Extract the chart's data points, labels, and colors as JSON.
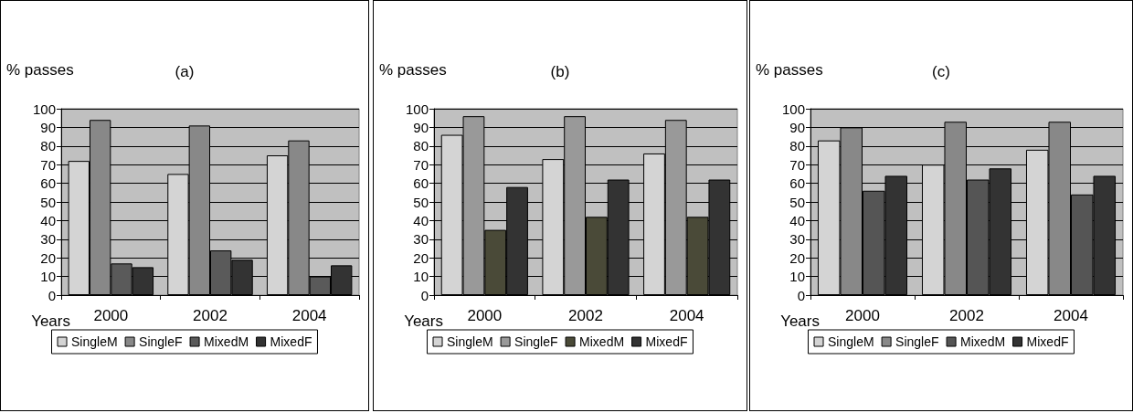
{
  "chart_data": [
    {
      "type": "bar",
      "title": "(a)",
      "ylabel": "% passes",
      "xlabel": "Years",
      "categories": [
        "2000",
        "2002",
        "2004"
      ],
      "ylim": [
        0,
        100
      ],
      "yticks": [
        0,
        10,
        20,
        30,
        40,
        50,
        60,
        70,
        80,
        90,
        100
      ],
      "grid": "y",
      "legend": "bottom",
      "series": [
        {
          "name": "SingleM",
          "color": "#d4d4d4",
          "values": [
            72,
            65,
            75
          ]
        },
        {
          "name": "SingleF",
          "color": "#888888",
          "values": [
            94,
            91,
            83
          ]
        },
        {
          "name": "MixedM",
          "color": "#5a5a5a",
          "values": [
            17,
            24,
            10
          ]
        },
        {
          "name": "MixedF",
          "color": "#333333",
          "values": [
            15,
            19,
            16
          ]
        }
      ]
    },
    {
      "type": "bar",
      "title": "(b)",
      "ylabel": "% passes",
      "xlabel": "Years",
      "categories": [
        "2000",
        "2002",
        "2004"
      ],
      "ylim": [
        0,
        100
      ],
      "yticks": [
        0,
        10,
        20,
        30,
        40,
        50,
        60,
        70,
        80,
        90,
        100
      ],
      "grid": "y",
      "legend": "bottom",
      "series": [
        {
          "name": "SingleM",
          "color": "#d4d4d4",
          "values": [
            86,
            73,
            76
          ]
        },
        {
          "name": "SingleF",
          "color": "#999999",
          "values": [
            96,
            96,
            94
          ]
        },
        {
          "name": "MixedM",
          "color": "#4a4a38",
          "values": [
            35,
            42,
            42
          ]
        },
        {
          "name": "MixedF",
          "color": "#333333",
          "values": [
            58,
            62,
            62
          ]
        }
      ]
    },
    {
      "type": "bar",
      "title": "(c)",
      "ylabel": "% passes",
      "xlabel": "Years",
      "categories": [
        "2000",
        "2002",
        "2004"
      ],
      "ylim": [
        0,
        100
      ],
      "yticks": [
        0,
        10,
        20,
        30,
        40,
        50,
        60,
        70,
        80,
        90,
        100
      ],
      "grid": "y",
      "legend": "bottom",
      "series": [
        {
          "name": "SingleM",
          "color": "#d4d4d4",
          "values": [
            83,
            70,
            78
          ]
        },
        {
          "name": "SingleF",
          "color": "#888888",
          "values": [
            90,
            93,
            93
          ]
        },
        {
          "name": "MixedM",
          "color": "#555555",
          "values": [
            56,
            62,
            54
          ]
        },
        {
          "name": "MixedF",
          "color": "#333333",
          "values": [
            64,
            68,
            64
          ]
        }
      ]
    }
  ]
}
